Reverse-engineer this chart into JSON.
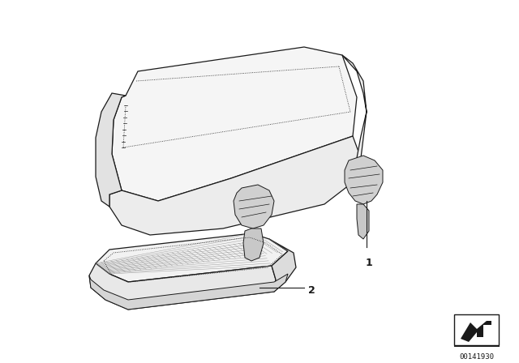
{
  "background_color": "#ffffff",
  "part_number": "00141930",
  "label1": "1",
  "label2": "2",
  "fig_width": 6.4,
  "fig_height": 4.48,
  "line_color": "#1a1a1a",
  "face_color_light": "#f8f8f8",
  "face_color_mid": "#eeeeee",
  "face_color_dark": "#e0e0e0",
  "bracket_color": "#d0d0d0"
}
